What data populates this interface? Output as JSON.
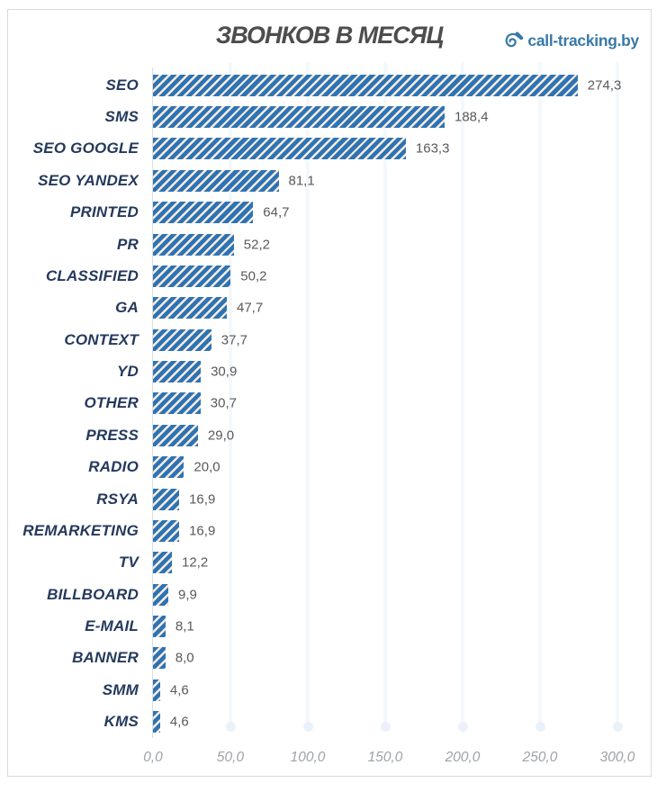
{
  "header": {
    "title": "ЗВОНКОВ В МЕСЯЦ",
    "logo_text": "call-tracking.by"
  },
  "colors": {
    "bar_blue": "#2E74B5",
    "hatch_gap": "#F9ECDF",
    "category_label": "#24395C",
    "value_label": "#595959",
    "title_text": "#4D4D4F",
    "logo_blue": "#3878A8",
    "tick_label": "#9FA3A7",
    "gridline": "#F4F8FD",
    "gridline_dot": "#EBF1FA",
    "axis_line": "#DCDCDC",
    "border": "#D9D9D9"
  },
  "chart_data": {
    "type": "bar",
    "orientation": "horizontal",
    "title": "ЗВОНКОВ В МЕСЯЦ",
    "categories": [
      "SEO",
      "SMS",
      "SEO GOOGLE",
      "SEO YANDEX",
      "PRINTED",
      "PR",
      "CLASSIFIED",
      "GA",
      "CONTEXT",
      "YD",
      "OTHER",
      "PRESS",
      "RADIO",
      "RSYA",
      "REMARKETING",
      "TV",
      "BILLBOARD",
      "E-MAIL",
      "BANNER",
      "SMM",
      "KMS"
    ],
    "values": [
      274.3,
      188.4,
      163.3,
      81.1,
      64.7,
      52.2,
      50.2,
      47.7,
      37.7,
      30.9,
      30.7,
      29.0,
      20.0,
      16.9,
      16.9,
      12.2,
      9.9,
      8.1,
      8.0,
      4.6,
      4.6
    ],
    "value_labels": [
      "274,3",
      "188,4",
      "163,3",
      "81,1",
      "64,7",
      "52,2",
      "50,2",
      "47,7",
      "37,7",
      "30,9",
      "30,7",
      "29,0",
      "20,0",
      "16,9",
      "16,9",
      "12,2",
      "9,9",
      "8,1",
      "8,0",
      "4,6",
      "4,6"
    ],
    "xlabel": "",
    "ylabel": "",
    "xlim": [
      0,
      300
    ],
    "x_ticks": [
      "0,0",
      "50,0",
      "100,0",
      "150,0",
      "200,0",
      "250,0",
      "300,0"
    ],
    "x_tick_values": [
      0,
      50,
      100,
      150,
      200,
      250,
      300
    ],
    "decimal_separator": ",",
    "grid": "vertical-faint",
    "legend": "none",
    "bar_style": "diagonal-hatch"
  }
}
